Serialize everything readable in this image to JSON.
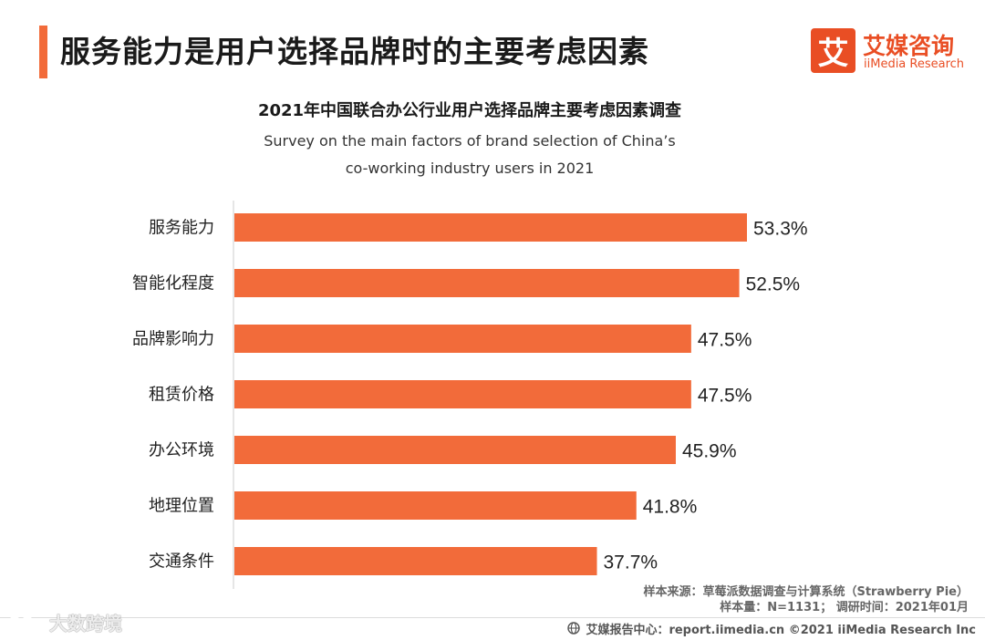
{
  "header": {
    "title": "服务能力是用户选择品牌时的主要考虑因素",
    "accent_color": "#F26B3A"
  },
  "logo": {
    "mark": "艾",
    "name_cn": "艾媒咨询",
    "name_en": "iiMedia Research",
    "color": "#E94E24"
  },
  "chart_data": {
    "type": "bar",
    "orientation": "horizontal",
    "title": "2021年中国联合办公行业用户选择品牌主要考虑因素调查",
    "subtitle_line1": "Survey on the main factors of brand selection of China’s",
    "subtitle_line2": "co-working industry users in 2021",
    "categories": [
      "服务能力",
      "智能化程度",
      "品牌影响力",
      "租赁价格",
      "办公环境",
      "地理位置",
      "交通条件"
    ],
    "values": [
      53.3,
      52.5,
      47.5,
      47.5,
      45.9,
      41.8,
      37.7
    ],
    "labels": [
      "53.3%",
      "52.5%",
      "47.5%",
      "47.5%",
      "45.9%",
      "41.8%",
      "37.7%"
    ],
    "unit": "%",
    "xlim": [
      0,
      53.3
    ],
    "bar_color": "#F26B3A",
    "xlabel": "",
    "ylabel": ""
  },
  "source": {
    "line1": "样本来源：草莓派数据调查与计算系统（Strawberry Pie）",
    "line2": "样本量：N=1131；   调研时间：2021年01月"
  },
  "footer": {
    "text": "艾媒报告中心：report.iimedia.cn   ©2021  iiMedia Research  Inc"
  },
  "watermark": {
    "text": "大数跨境"
  }
}
